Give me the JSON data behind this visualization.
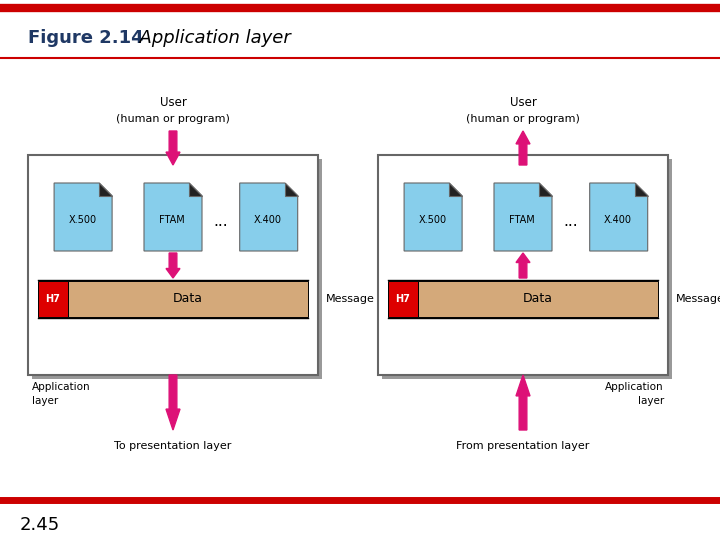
{
  "title_bold": "Figure 2.14",
  "title_italic": "  Application layer",
  "page_num": "2.45",
  "red_line_color": "#cc0000",
  "title_color": "#1f3864",
  "box_border_color": "#666666",
  "arrow_color": "#dd1177",
  "cyan_box_color": "#87ceeb",
  "dark_corner_color": "#222222",
  "red_h7_color": "#dd0000",
  "data_box_color": "#d4a97a",
  "white": "#ffffff",
  "background": "#ffffff",
  "shadow_color": "#aaaaaa"
}
